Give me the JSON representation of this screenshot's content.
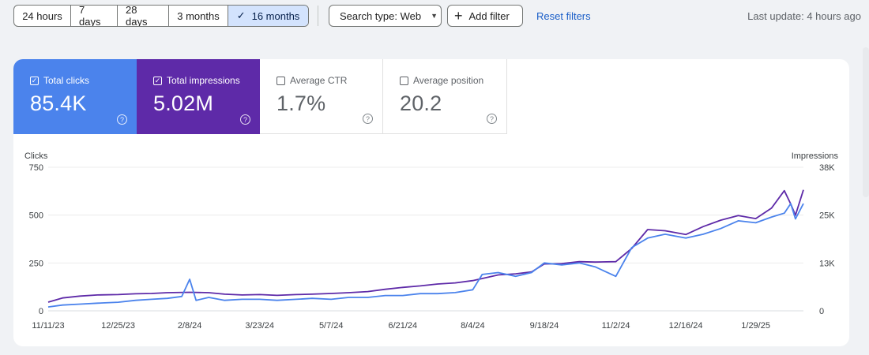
{
  "toolbar": {
    "ranges": [
      {
        "label": "24 hours",
        "selected": false
      },
      {
        "label": "7 days",
        "selected": false
      },
      {
        "label": "28 days",
        "selected": false
      },
      {
        "label": "3 months",
        "selected": false
      },
      {
        "label": "16 months",
        "selected": true
      }
    ],
    "search_type_label": "Search type: Web",
    "add_filter_label": "Add filter",
    "reset_label": "Reset filters",
    "last_update": "Last update: 4 hours ago"
  },
  "metrics": [
    {
      "label": "Total clicks",
      "value": "85.4K",
      "checked": true,
      "color": "#4b83ec"
    },
    {
      "label": "Total impressions",
      "value": "5.02M",
      "checked": true,
      "color": "#5e2aa8"
    },
    {
      "label": "Average CTR",
      "value": "1.7%",
      "checked": false
    },
    {
      "label": "Average position",
      "value": "20.2",
      "checked": false
    }
  ],
  "chart_data": {
    "type": "line",
    "left_axis_label": "Clicks",
    "right_axis_label": "Impressions",
    "left_ticks": [
      {
        "value": 0,
        "label": "0"
      },
      {
        "value": 250,
        "label": "250"
      },
      {
        "value": 500,
        "label": "500"
      },
      {
        "value": 750,
        "label": "750"
      }
    ],
    "right_ticks": [
      {
        "value": 0,
        "label": "0"
      },
      {
        "value": 12667,
        "label": "13K"
      },
      {
        "value": 25333,
        "label": "25K"
      },
      {
        "value": 38000,
        "label": "38K"
      }
    ],
    "ylim_left": [
      0,
      750
    ],
    "ylim_right": [
      0,
      38000
    ],
    "x_ticks": [
      "11/11/23",
      "12/25/23",
      "2/8/24",
      "3/23/24",
      "5/7/24",
      "6/21/24",
      "8/4/24",
      "9/18/24",
      "11/2/24",
      "12/16/24",
      "1/29/25"
    ],
    "x_start": "11/11/23",
    "x_end": "2/28/25",
    "grid": true,
    "series": [
      {
        "name": "Clicks",
        "axis": "left",
        "color": "#4b83ec",
        "points": [
          [
            "11/11/23",
            20
          ],
          [
            "11/20/23",
            30
          ],
          [
            "12/1/23",
            35
          ],
          [
            "12/12/23",
            40
          ],
          [
            "12/25/23",
            45
          ],
          [
            "1/5/24",
            55
          ],
          [
            "1/15/24",
            60
          ],
          [
            "1/25/24",
            65
          ],
          [
            "2/3/24",
            75
          ],
          [
            "2/8/24",
            165
          ],
          [
            "2/12/24",
            55
          ],
          [
            "2/20/24",
            70
          ],
          [
            "3/1/24",
            55
          ],
          [
            "3/12/24",
            60
          ],
          [
            "3/23/24",
            60
          ],
          [
            "4/3/24",
            55
          ],
          [
            "4/15/24",
            60
          ],
          [
            "4/25/24",
            65
          ],
          [
            "5/7/24",
            60
          ],
          [
            "5/18/24",
            70
          ],
          [
            "5/30/24",
            70
          ],
          [
            "6/10/24",
            80
          ],
          [
            "6/21/24",
            80
          ],
          [
            "7/2/24",
            90
          ],
          [
            "7/13/24",
            90
          ],
          [
            "7/24/24",
            95
          ],
          [
            "8/4/24",
            110
          ],
          [
            "8/10/24",
            190
          ],
          [
            "8/20/24",
            200
          ],
          [
            "8/31/24",
            180
          ],
          [
            "9/10/24",
            200
          ],
          [
            "9/18/24",
            250
          ],
          [
            "9/29/24",
            240
          ],
          [
            "10/10/24",
            250
          ],
          [
            "10/20/24",
            230
          ],
          [
            "11/2/24",
            180
          ],
          [
            "11/12/24",
            330
          ],
          [
            "11/22/24",
            380
          ],
          [
            "12/3/24",
            400
          ],
          [
            "12/16/24",
            380
          ],
          [
            "12/27/24",
            400
          ],
          [
            "1/7/25",
            430
          ],
          [
            "1/18/25",
            470
          ],
          [
            "1/29/25",
            460
          ],
          [
            "2/8/25",
            490
          ],
          [
            "2/16/25",
            510
          ],
          [
            "2/20/25",
            560
          ],
          [
            "2/23/25",
            480
          ],
          [
            "2/28/25",
            560
          ]
        ]
      },
      {
        "name": "Impressions",
        "axis": "right",
        "color": "#5e2aa8",
        "points": [
          [
            "11/11/23",
            2300
          ],
          [
            "11/20/23",
            3400
          ],
          [
            "12/1/23",
            3900
          ],
          [
            "12/12/23",
            4200
          ],
          [
            "12/25/23",
            4300
          ],
          [
            "1/5/24",
            4500
          ],
          [
            "1/15/24",
            4600
          ],
          [
            "1/25/24",
            4800
          ],
          [
            "2/8/24",
            4900
          ],
          [
            "2/20/24",
            4800
          ],
          [
            "3/1/24",
            4400
          ],
          [
            "3/12/24",
            4200
          ],
          [
            "3/23/24",
            4300
          ],
          [
            "4/3/24",
            4100
          ],
          [
            "4/15/24",
            4300
          ],
          [
            "4/25/24",
            4400
          ],
          [
            "5/7/24",
            4600
          ],
          [
            "5/18/24",
            4800
          ],
          [
            "5/30/24",
            5100
          ],
          [
            "6/10/24",
            5700
          ],
          [
            "6/21/24",
            6200
          ],
          [
            "7/2/24",
            6600
          ],
          [
            "7/13/24",
            7100
          ],
          [
            "7/24/24",
            7400
          ],
          [
            "8/4/24",
            8000
          ],
          [
            "8/20/24",
            9500
          ],
          [
            "8/31/24",
            9800
          ],
          [
            "9/10/24",
            10300
          ],
          [
            "9/18/24",
            12400
          ],
          [
            "9/29/24",
            12500
          ],
          [
            "10/10/24",
            13000
          ],
          [
            "10/20/24",
            12900
          ],
          [
            "11/2/24",
            13000
          ],
          [
            "11/12/24",
            16500
          ],
          [
            "11/22/24",
            21500
          ],
          [
            "12/3/24",
            21200
          ],
          [
            "12/16/24",
            20200
          ],
          [
            "12/27/24",
            22300
          ],
          [
            "1/7/25",
            24000
          ],
          [
            "1/18/25",
            25200
          ],
          [
            "1/29/25",
            24400
          ],
          [
            "2/8/25",
            27200
          ],
          [
            "2/16/25",
            31800
          ],
          [
            "2/20/25",
            28300
          ],
          [
            "2/23/25",
            25300
          ],
          [
            "2/28/25",
            32000
          ]
        ]
      }
    ]
  }
}
